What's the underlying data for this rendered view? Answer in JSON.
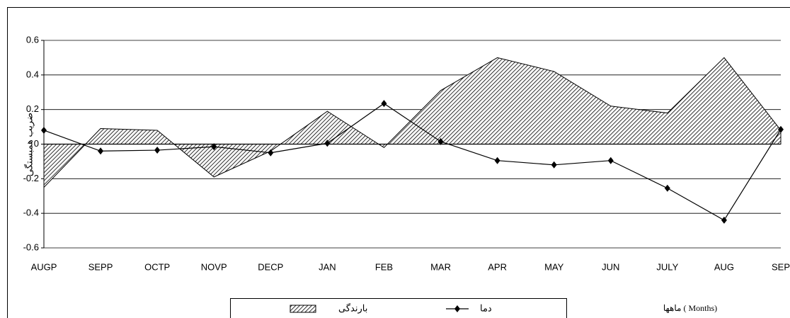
{
  "chart_data": {
    "type": "area-line",
    "y_label": "ضریب همبستگی",
    "x_label": "ماهها ( Months)",
    "categories": [
      "AUGP",
      "SEPP",
      "OCTP",
      "NOVP",
      "DECP",
      "JAN",
      "FEB",
      "MAR",
      "APR",
      "MAY",
      "JUN",
      "JULY",
      "AUG",
      "SEP"
    ],
    "series": [
      {
        "name": "بارندگی",
        "kind": "area",
        "color": "#000000",
        "values": [
          -0.25,
          0.09,
          0.08,
          -0.19,
          -0.04,
          0.19,
          -0.02,
          0.31,
          0.5,
          0.42,
          0.22,
          0.18,
          0.5,
          0.08
        ]
      },
      {
        "name": "دما",
        "kind": "line",
        "color": "#000000",
        "values": [
          0.08,
          -0.04,
          -0.035,
          -0.015,
          -0.05,
          0.005,
          0.235,
          0.015,
          -0.095,
          -0.12,
          -0.095,
          -0.255,
          -0.44,
          0.085
        ]
      }
    ],
    "ylim": [
      -0.6,
      0.6
    ],
    "yticks": [
      -0.6,
      -0.4,
      -0.2,
      0,
      0.2,
      0.4,
      0.6
    ],
    "grid": true
  }
}
